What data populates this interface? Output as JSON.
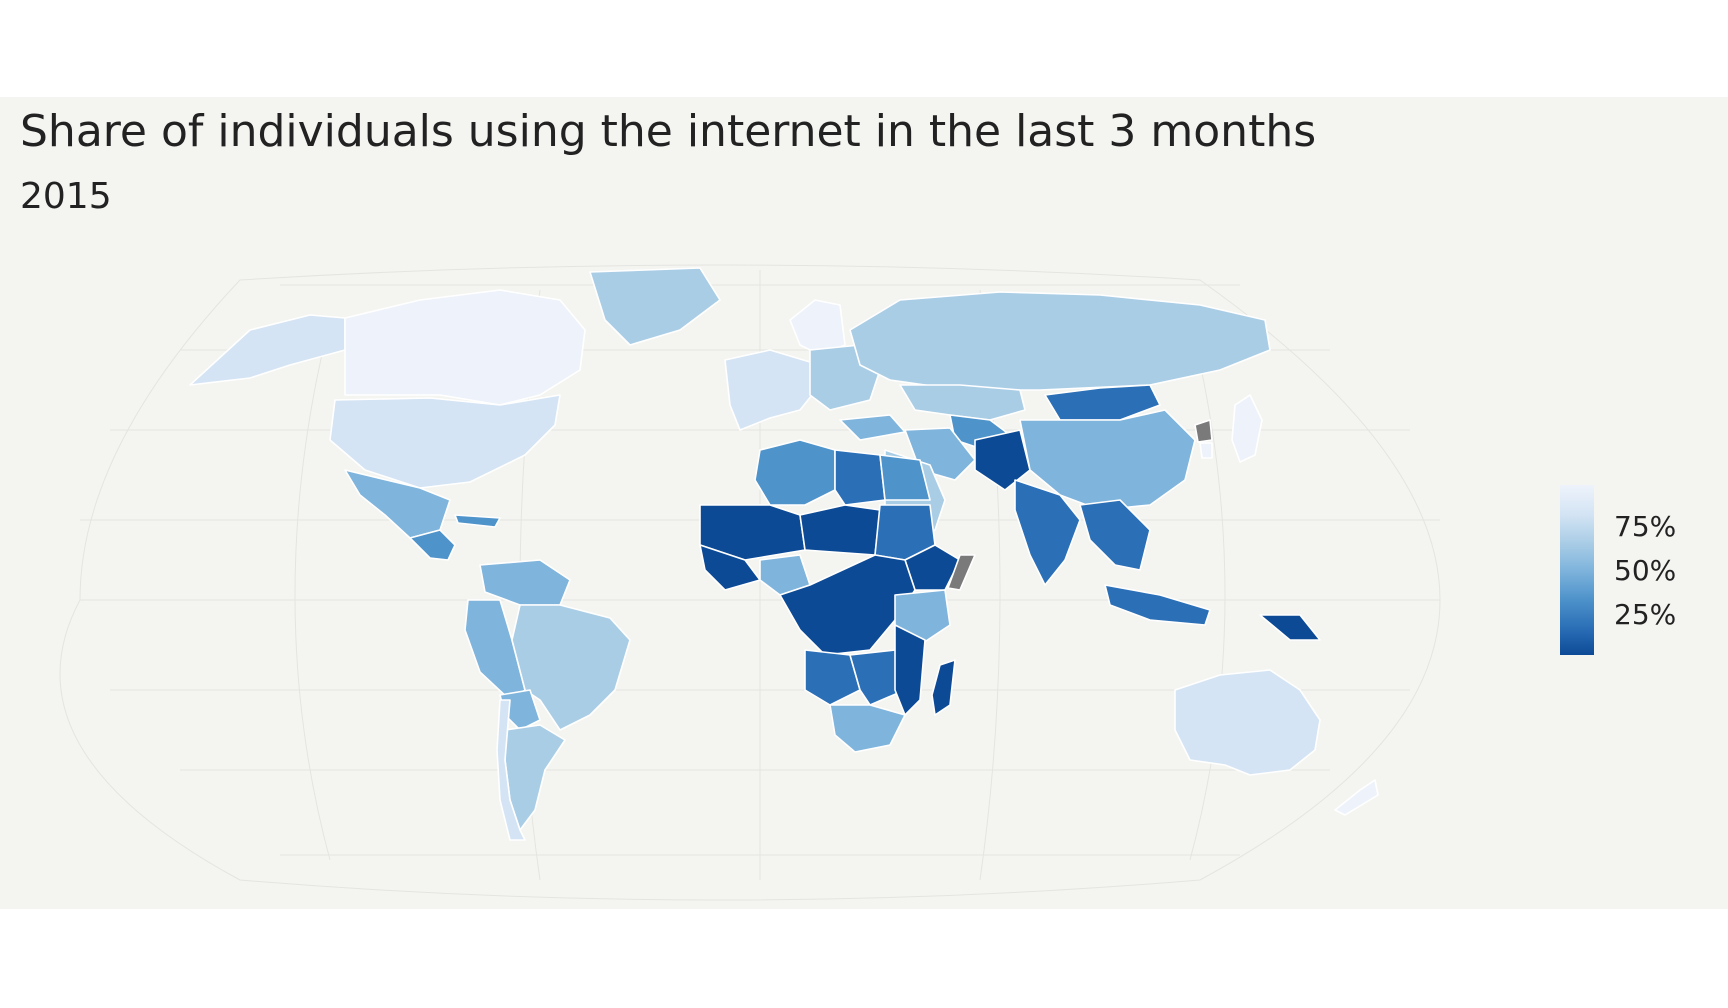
{
  "title": "Share of individuals using the internet in the last 3 months",
  "subtitle": "2015",
  "colors": {
    "scale": [
      "#0d4a96",
      "#2b6fb7",
      "#4f93cb",
      "#7fb4dc",
      "#aacde6",
      "#d4e4f4",
      "#eef3fb"
    ],
    "no_data": "#7a7a7a",
    "border": "#ffffff"
  },
  "legend": {
    "ticks": [
      "75%",
      "50%",
      "25%"
    ],
    "range": [
      0,
      100
    ]
  },
  "map": {
    "regions": [
      {
        "name": "Canada",
        "value": 88
      },
      {
        "name": "United States",
        "value": 74
      },
      {
        "name": "Greenland",
        "value": 66
      },
      {
        "name": "Alaska",
        "value": 74
      },
      {
        "name": "Mexico",
        "value": 57
      },
      {
        "name": "Central America",
        "value": 30
      },
      {
        "name": "Cuba",
        "value": 30
      },
      {
        "name": "Brazil",
        "value": 59
      },
      {
        "name": "Andean South America",
        "value": 45
      },
      {
        "name": "Paraguay",
        "value": 48
      },
      {
        "name": "Argentina",
        "value": 68
      },
      {
        "name": "Chile",
        "value": 76
      },
      {
        "name": "Northern South America",
        "value": 55
      },
      {
        "name": "Western Europe",
        "value": 85
      },
      {
        "name": "Nordic countries",
        "value": 92
      },
      {
        "name": "Eastern Europe",
        "value": 70
      },
      {
        "name": "Russia",
        "value": 70
      },
      {
        "name": "Kazakhstan",
        "value": 70
      },
      {
        "name": "Central Asia",
        "value": 35
      },
      {
        "name": "Mongolia",
        "value": 22
      },
      {
        "name": "China",
        "value": 50
      },
      {
        "name": "Japan",
        "value": 92
      },
      {
        "name": "South Korea",
        "value": 89
      },
      {
        "name": "North Korea",
        "value": null
      },
      {
        "name": "India",
        "value": 15
      },
      {
        "name": "Afghanistan and Pakistan",
        "value": 10
      },
      {
        "name": "Iran",
        "value": 45
      },
      {
        "name": "Saudi Arabia",
        "value": 70
      },
      {
        "name": "Turkey",
        "value": 54
      },
      {
        "name": "Southeast Asia",
        "value": 25
      },
      {
        "name": "Indonesia",
        "value": 22
      },
      {
        "name": "Papua New Guinea",
        "value": 8
      },
      {
        "name": "Australia",
        "value": 85
      },
      {
        "name": "New Zealand",
        "value": 88
      },
      {
        "name": "Algeria",
        "value": 38
      },
      {
        "name": "Libya",
        "value": 20
      },
      {
        "name": "Egypt",
        "value": 35
      },
      {
        "name": "Western Sahel",
        "value": 8
      },
      {
        "name": "Central Sahel",
        "value": 4
      },
      {
        "name": "Sudan",
        "value": 26
      },
      {
        "name": "Ethiopia",
        "value": 12
      },
      {
        "name": "Somalia",
        "value": null
      },
      {
        "name": "West Africa coast",
        "value": 12
      },
      {
        "name": "Nigeria",
        "value": 47
      },
      {
        "name": "Central Africa",
        "value": 4
      },
      {
        "name": "Kenya",
        "value": 45
      },
      {
        "name": "Angola",
        "value": 15
      },
      {
        "name": "Zambia and Zimbabwe",
        "value": 25
      },
      {
        "name": "Mozambique",
        "value": 8
      },
      {
        "name": "Southern Africa",
        "value": 50
      },
      {
        "name": "Madagascar",
        "value": 5
      }
    ]
  }
}
